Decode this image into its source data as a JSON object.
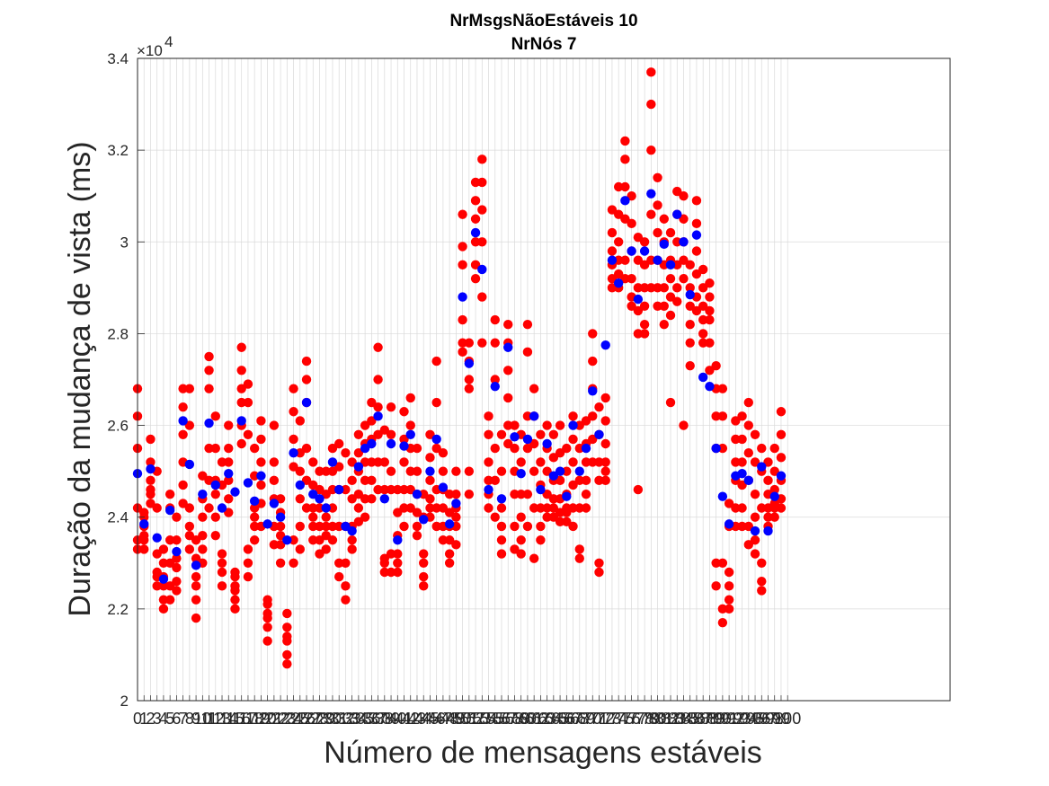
{
  "chart_data": {
    "type": "scatter",
    "title": "NrMsgsNãoEstáveis 10",
    "subtitle": "NrNós 7",
    "xlabel": "Número de mensagens estáveis",
    "ylabel": "Duração da mudança de vista (ms)",
    "y_exponent_label": "×10",
    "y_exponent_power": "4",
    "xlim": [
      0,
      125
    ],
    "ylim": [
      2.0,
      3.4
    ],
    "y_scale_factor": 10000,
    "yticks": [
      "2",
      "2.2",
      "2.4",
      "2.6",
      "2.8",
      "3",
      "3.2",
      "3.4"
    ],
    "ytick_values": [
      2.0,
      2.2,
      2.4,
      2.6,
      2.8,
      3.0,
      3.2,
      3.4
    ],
    "grid": true,
    "colors": {
      "samples": "#ff0000",
      "mean": "#0000ff",
      "grid": "#d9d9d9",
      "axis": "#262626"
    },
    "series": [
      {
        "role": "samples",
        "color": "#ff0000"
      },
      {
        "role": "mean",
        "color": "#0000ff"
      }
    ],
    "x": [
      0,
      1,
      2,
      3,
      4,
      5,
      6,
      7,
      8,
      9,
      10,
      11,
      12,
      13,
      14,
      15,
      16,
      17,
      18,
      19,
      20,
      21,
      22,
      23,
      24,
      25,
      26,
      27,
      28,
      29,
      30,
      31,
      32,
      33,
      34,
      35,
      36,
      37,
      38,
      39,
      40,
      41,
      42,
      43,
      44,
      45,
      46,
      47,
      48,
      49,
      50,
      51,
      52,
      53,
      54,
      55,
      56,
      57,
      58,
      59,
      60,
      61,
      62,
      63,
      64,
      65,
      66,
      67,
      68,
      69,
      70,
      71,
      72,
      73,
      74,
      75,
      76,
      77,
      78,
      79,
      80,
      81,
      82,
      83,
      84,
      85,
      86,
      87,
      88,
      89,
      90,
      91,
      92,
      93,
      94,
      95,
      96,
      97,
      98,
      99,
      100
    ],
    "means": [
      2.495,
      2.385,
      2.505,
      2.355,
      2.265,
      2.415,
      2.325,
      2.61,
      2.515,
      2.295,
      2.45,
      2.605,
      2.47,
      2.42,
      2.495,
      2.455,
      2.61,
      2.475,
      2.435,
      2.49,
      2.385,
      2.43,
      2.4,
      2.35,
      2.54,
      2.47,
      2.65,
      2.45,
      2.44,
      2.42,
      2.52,
      2.46,
      2.38,
      2.37,
      2.51,
      2.55,
      2.56,
      2.62,
      2.44,
      2.56,
      2.35,
      2.555,
      2.58,
      2.45,
      2.395,
      2.5,
      2.57,
      2.465,
      2.385,
      2.43,
      2.88,
      2.735,
      3.02,
      2.94,
      2.46,
      2.685,
      2.44,
      2.77,
      2.575,
      2.495,
      2.57,
      2.62,
      2.46,
      2.56,
      2.49,
      2.5,
      2.445,
      2.6,
      2.5,
      2.55,
      2.675,
      2.58,
      2.775,
      2.96,
      2.91,
      3.09,
      2.98,
      2.875,
      2.98,
      3.105,
      2.96,
      2.995,
      2.95,
      3.06,
      3.0,
      2.885,
      3.015,
      2.705,
      2.685,
      2.55,
      2.445,
      2.385,
      2.49,
      2.495,
      2.48,
      2.37,
      2.51,
      2.37,
      2.445,
      2.49
    ],
    "samples": [
      [
        2.68,
        2.62,
        2.55,
        2.42,
        2.35,
        2.33
      ],
      [
        2.41,
        2.38,
        2.35,
        2.33,
        2.36,
        2.4
      ],
      [
        2.57,
        2.52,
        2.46,
        2.43,
        2.45,
        2.48
      ],
      [
        2.5,
        2.42,
        2.32,
        2.28,
        2.25,
        2.27
      ],
      [
        2.33,
        2.27,
        2.22,
        2.2,
        2.25,
        2.3
      ],
      [
        2.45,
        2.42,
        2.35,
        2.3,
        2.25,
        2.22
      ],
      [
        2.4,
        2.35,
        2.31,
        2.26,
        2.24,
        2.29
      ],
      [
        2.68,
        2.64,
        2.58,
        2.52,
        2.47,
        2.43
      ],
      [
        2.68,
        2.6,
        2.42,
        2.36,
        2.33,
        2.38
      ],
      [
        2.35,
        2.27,
        2.22,
        2.18,
        2.25,
        2.31
      ],
      [
        2.49,
        2.44,
        2.4,
        2.36,
        2.33,
        2.3
      ],
      [
        2.75,
        2.72,
        2.68,
        2.55,
        2.48,
        2.42
      ],
      [
        2.62,
        2.55,
        2.48,
        2.45,
        2.36,
        2.4
      ],
      [
        2.52,
        2.47,
        2.32,
        2.28,
        2.25,
        2.3
      ],
      [
        2.6,
        2.55,
        2.52,
        2.48,
        2.44,
        2.41
      ],
      [
        2.27,
        2.25,
        2.22,
        2.2,
        2.24,
        2.28
      ],
      [
        2.77,
        2.72,
        2.68,
        2.65,
        2.6,
        2.56
      ],
      [
        2.69,
        2.65,
        2.58,
        2.33,
        2.3,
        2.27
      ],
      [
        2.55,
        2.49,
        2.42,
        2.38,
        2.35,
        2.4
      ],
      [
        2.61,
        2.57,
        2.52,
        2.47,
        2.43,
        2.38
      ],
      [
        2.22,
        2.19,
        2.16,
        2.13,
        2.18,
        2.21
      ],
      [
        2.6,
        2.52,
        2.48,
        2.44,
        2.38,
        2.34
      ],
      [
        2.44,
        2.41,
        2.38,
        2.34,
        2.3,
        2.36
      ],
      [
        2.19,
        2.16,
        2.13,
        2.1,
        2.08,
        2.14
      ],
      [
        2.68,
        2.63,
        2.57,
        2.51,
        2.35,
        2.3
      ],
      [
        2.61,
        2.54,
        2.5,
        2.44,
        2.38,
        2.33
      ],
      [
        2.74,
        2.7,
        2.65,
        2.55,
        2.48,
        2.42
      ],
      [
        2.52,
        2.47,
        2.42,
        2.38,
        2.35,
        2.4
      ],
      [
        2.5,
        2.46,
        2.42,
        2.38,
        2.35,
        2.32
      ],
      [
        2.5,
        2.45,
        2.4,
        2.36,
        2.33,
        2.38
      ],
      [
        2.55,
        2.5,
        2.46,
        2.42,
        2.38,
        2.35
      ],
      [
        2.56,
        2.51,
        2.46,
        2.38,
        2.3,
        2.27
      ],
      [
        2.54,
        2.46,
        2.38,
        2.3,
        2.25,
        2.22
      ],
      [
        2.52,
        2.48,
        2.44,
        2.38,
        2.35,
        2.33
      ],
      [
        2.58,
        2.54,
        2.5,
        2.45,
        2.42,
        2.39
      ],
      [
        2.6,
        2.56,
        2.52,
        2.48,
        2.44,
        2.4
      ],
      [
        2.65,
        2.61,
        2.57,
        2.52,
        2.48,
        2.44
      ],
      [
        2.77,
        2.7,
        2.64,
        2.58,
        2.52,
        2.46
      ],
      [
        2.59,
        2.52,
        2.46,
        2.31,
        2.28,
        2.3
      ],
      [
        2.64,
        2.58,
        2.5,
        2.46,
        2.32,
        2.28
      ],
      [
        2.46,
        2.41,
        2.36,
        2.32,
        2.28,
        2.3
      ],
      [
        2.63,
        2.57,
        2.52,
        2.46,
        2.42,
        2.38
      ],
      [
        2.66,
        2.6,
        2.55,
        2.5,
        2.46,
        2.42
      ],
      [
        2.55,
        2.5,
        2.45,
        2.41,
        2.38,
        2.36
      ],
      [
        2.45,
        2.4,
        2.32,
        2.27,
        2.25,
        2.3
      ],
      [
        2.58,
        2.53,
        2.48,
        2.44,
        2.4,
        2.42
      ],
      [
        2.74,
        2.65,
        2.55,
        2.46,
        2.42,
        2.38
      ],
      [
        2.54,
        2.5,
        2.46,
        2.42,
        2.38,
        2.35
      ],
      [
        2.45,
        2.41,
        2.38,
        2.35,
        2.3,
        2.32
      ],
      [
        2.5,
        2.45,
        2.42,
        2.38,
        2.34,
        2.4
      ],
      [
        3.06,
        2.99,
        2.95,
        2.83,
        2.78,
        2.76
      ],
      [
        2.78,
        2.74,
        2.7,
        2.68,
        2.5,
        2.45
      ],
      [
        3.13,
        3.09,
        3.05,
        3.0,
        2.95,
        2.92
      ],
      [
        3.18,
        3.13,
        3.07,
        3.0,
        2.88,
        2.78
      ],
      [
        2.62,
        2.58,
        2.52,
        2.48,
        2.45,
        2.42
      ],
      [
        2.83,
        2.78,
        2.7,
        2.55,
        2.48,
        2.4
      ],
      [
        2.58,
        2.5,
        2.42,
        2.38,
        2.35,
        2.32
      ],
      [
        2.82,
        2.78,
        2.72,
        2.66,
        2.6,
        2.56
      ],
      [
        2.6,
        2.55,
        2.5,
        2.45,
        2.38,
        2.33
      ],
      [
        2.58,
        2.52,
        2.45,
        2.4,
        2.35,
        2.32
      ],
      [
        2.82,
        2.76,
        2.62,
        2.55,
        2.45,
        2.38
      ],
      [
        2.68,
        2.62,
        2.56,
        2.5,
        2.42,
        2.31
      ],
      [
        2.58,
        2.52,
        2.47,
        2.42,
        2.38,
        2.35
      ],
      [
        2.6,
        2.55,
        2.5,
        2.45,
        2.42,
        2.4
      ],
      [
        2.58,
        2.53,
        2.48,
        2.44,
        2.4,
        2.42
      ],
      [
        2.6,
        2.54,
        2.48,
        2.44,
        2.41,
        2.39
      ],
      [
        2.55,
        2.5,
        2.45,
        2.42,
        2.39,
        2.41
      ],
      [
        2.62,
        2.57,
        2.52,
        2.47,
        2.42,
        2.38
      ],
      [
        2.6,
        2.55,
        2.48,
        2.42,
        2.33,
        2.31
      ],
      [
        2.61,
        2.56,
        2.52,
        2.48,
        2.45,
        2.42
      ],
      [
        2.8,
        2.74,
        2.68,
        2.62,
        2.57,
        2.52
      ],
      [
        2.64,
        2.58,
        2.52,
        2.48,
        2.3,
        2.28
      ],
      [
        2.66,
        2.61,
        2.56,
        2.52,
        2.5,
        2.48
      ],
      [
        3.07,
        3.02,
        2.98,
        2.95,
        2.92,
        2.9
      ],
      [
        3.12,
        3.06,
        3.0,
        2.96,
        2.93,
        2.9
      ],
      [
        3.22,
        3.18,
        3.12,
        3.05,
        2.96,
        2.92
      ],
      [
        3.1,
        3.04,
        2.98,
        2.92,
        2.88,
        2.86
      ],
      [
        3.01,
        2.96,
        2.9,
        2.85,
        2.8,
        2.46
      ],
      [
        3.0,
        2.95,
        2.9,
        2.86,
        2.82,
        2.8
      ],
      [
        3.37,
        3.3,
        3.2,
        3.06,
        2.96,
        2.9
      ],
      [
        3.14,
        3.08,
        3.02,
        2.96,
        2.9,
        2.86
      ],
      [
        3.05,
        3.0,
        2.95,
        2.9,
        2.86,
        2.82
      ],
      [
        3.02,
        2.96,
        2.92,
        2.88,
        2.84,
        2.65
      ],
      [
        3.11,
        3.06,
        3.0,
        2.95,
        2.9,
        2.87
      ],
      [
        3.1,
        3.05,
        3.0,
        2.96,
        2.92,
        2.6
      ],
      [
        2.95,
        2.9,
        2.86,
        2.82,
        2.78,
        2.73
      ],
      [
        3.09,
        3.04,
        2.98,
        2.93,
        2.88,
        2.85
      ],
      [
        2.94,
        2.9,
        2.86,
        2.83,
        2.8,
        2.78
      ],
      [
        2.91,
        2.88,
        2.85,
        2.83,
        2.78,
        2.72
      ],
      [
        2.73,
        2.68,
        2.62,
        2.55,
        2.3,
        2.25
      ],
      [
        2.68,
        2.62,
        2.55,
        2.3,
        2.2,
        2.17
      ],
      [
        2.43,
        2.38,
        2.28,
        2.25,
        2.22,
        2.2
      ],
      [
        2.61,
        2.57,
        2.52,
        2.48,
        2.42,
        2.38
      ],
      [
        2.62,
        2.57,
        2.52,
        2.47,
        2.42,
        2.38
      ],
      [
        2.65,
        2.6,
        2.54,
        2.48,
        2.38,
        2.34
      ],
      [
        2.58,
        2.52,
        2.45,
        2.4,
        2.35,
        2.32
      ],
      [
        2.55,
        2.5,
        2.42,
        2.3,
        2.26,
        2.24
      ],
      [
        2.52,
        2.48,
        2.45,
        2.42,
        2.4,
        2.38
      ],
      [
        2.55,
        2.5,
        2.46,
        2.42,
        2.4,
        2.43
      ],
      [
        2.63,
        2.58,
        2.53,
        2.48,
        2.44,
        2.42
      ]
    ]
  }
}
